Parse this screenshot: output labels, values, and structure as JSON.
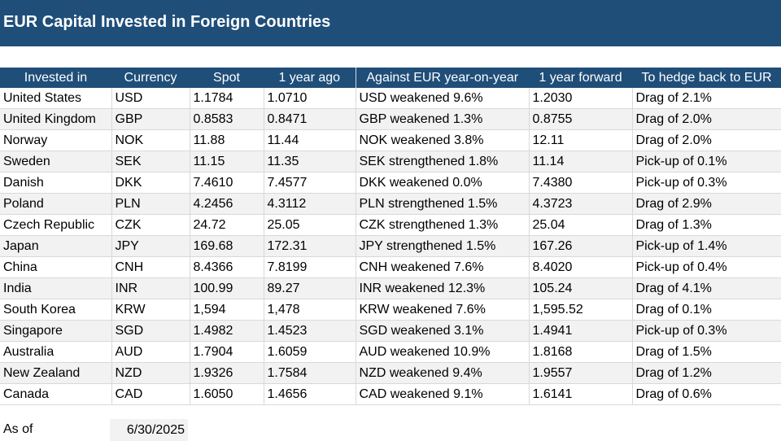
{
  "title": "EUR Capital Invested in Foreign Countries",
  "columns": [
    "Invested in",
    "Currency",
    "Spot",
    "1 year ago",
    "Against EUR year-on-year",
    "1 year forward",
    "To hedge back to EUR"
  ],
  "rows": [
    [
      "United States",
      "USD",
      "1.1784",
      "1.0710",
      "USD weakened 9.6%",
      "1.2030",
      "Drag of 2.1%"
    ],
    [
      "United Kingdom",
      "GBP",
      "0.8583",
      "0.8471",
      "GBP weakened 1.3%",
      "0.8755",
      "Drag of 2.0%"
    ],
    [
      "Norway",
      "NOK",
      "11.88",
      "11.44",
      "NOK weakened 3.8%",
      "12.11",
      "Drag of 2.0%"
    ],
    [
      "Sweden",
      "SEK",
      "11.15",
      "11.35",
      "SEK strengthened 1.8%",
      "11.14",
      "Pick-up of 0.1%"
    ],
    [
      "Danish",
      "DKK",
      "7.4610",
      "7.4577",
      "DKK weakened 0.0%",
      "7.4380",
      "Pick-up of 0.3%"
    ],
    [
      "Poland",
      "PLN",
      "4.2456",
      "4.3112",
      "PLN strengthened 1.5%",
      "4.3723",
      "Drag of 2.9%"
    ],
    [
      "Czech Republic",
      "CZK",
      "24.72",
      "25.05",
      "CZK strengthened 1.3%",
      "25.04",
      "Drag of 1.3%"
    ],
    [
      "Japan",
      "JPY",
      "169.68",
      "172.31",
      "JPY strengthened 1.5%",
      "167.26",
      "Pick-up of 1.4%"
    ],
    [
      "China",
      "CNH",
      "8.4366",
      "7.8199",
      "CNH weakened 7.6%",
      "8.4020",
      "Pick-up of 0.4%"
    ],
    [
      "India",
      "INR",
      "100.99",
      "89.27",
      "INR weakened 12.3%",
      "105.24",
      "Drag of 4.1%"
    ],
    [
      "South Korea",
      "KRW",
      "1,594",
      "1,478",
      "KRW weakened 7.6%",
      "1,595.52",
      "Drag of 0.1%"
    ],
    [
      "Singapore",
      "SGD",
      "1.4982",
      "1.4523",
      "SGD weakened 3.1%",
      "1.4941",
      "Pick-up of 0.3%"
    ],
    [
      "Australia",
      "AUD",
      "1.7904",
      "1.6059",
      "AUD weakened 10.9%",
      "1.8168",
      "Drag of 1.5%"
    ],
    [
      "New Zealand",
      "NZD",
      "1.9326",
      "1.7584",
      "NZD weakened 9.4%",
      "1.9557",
      "Drag of 1.2%"
    ],
    [
      "Canada",
      "CAD",
      "1.6050",
      "1.4656",
      "CAD weakened 9.1%",
      "1.6141",
      "Drag of 0.6%"
    ]
  ],
  "as_of": {
    "label": "As of",
    "value": "6/30/2025"
  },
  "colors": {
    "header_bg": "#1f4e79",
    "stripe": "#f2f2f2",
    "grid": "#d9d9d9"
  }
}
